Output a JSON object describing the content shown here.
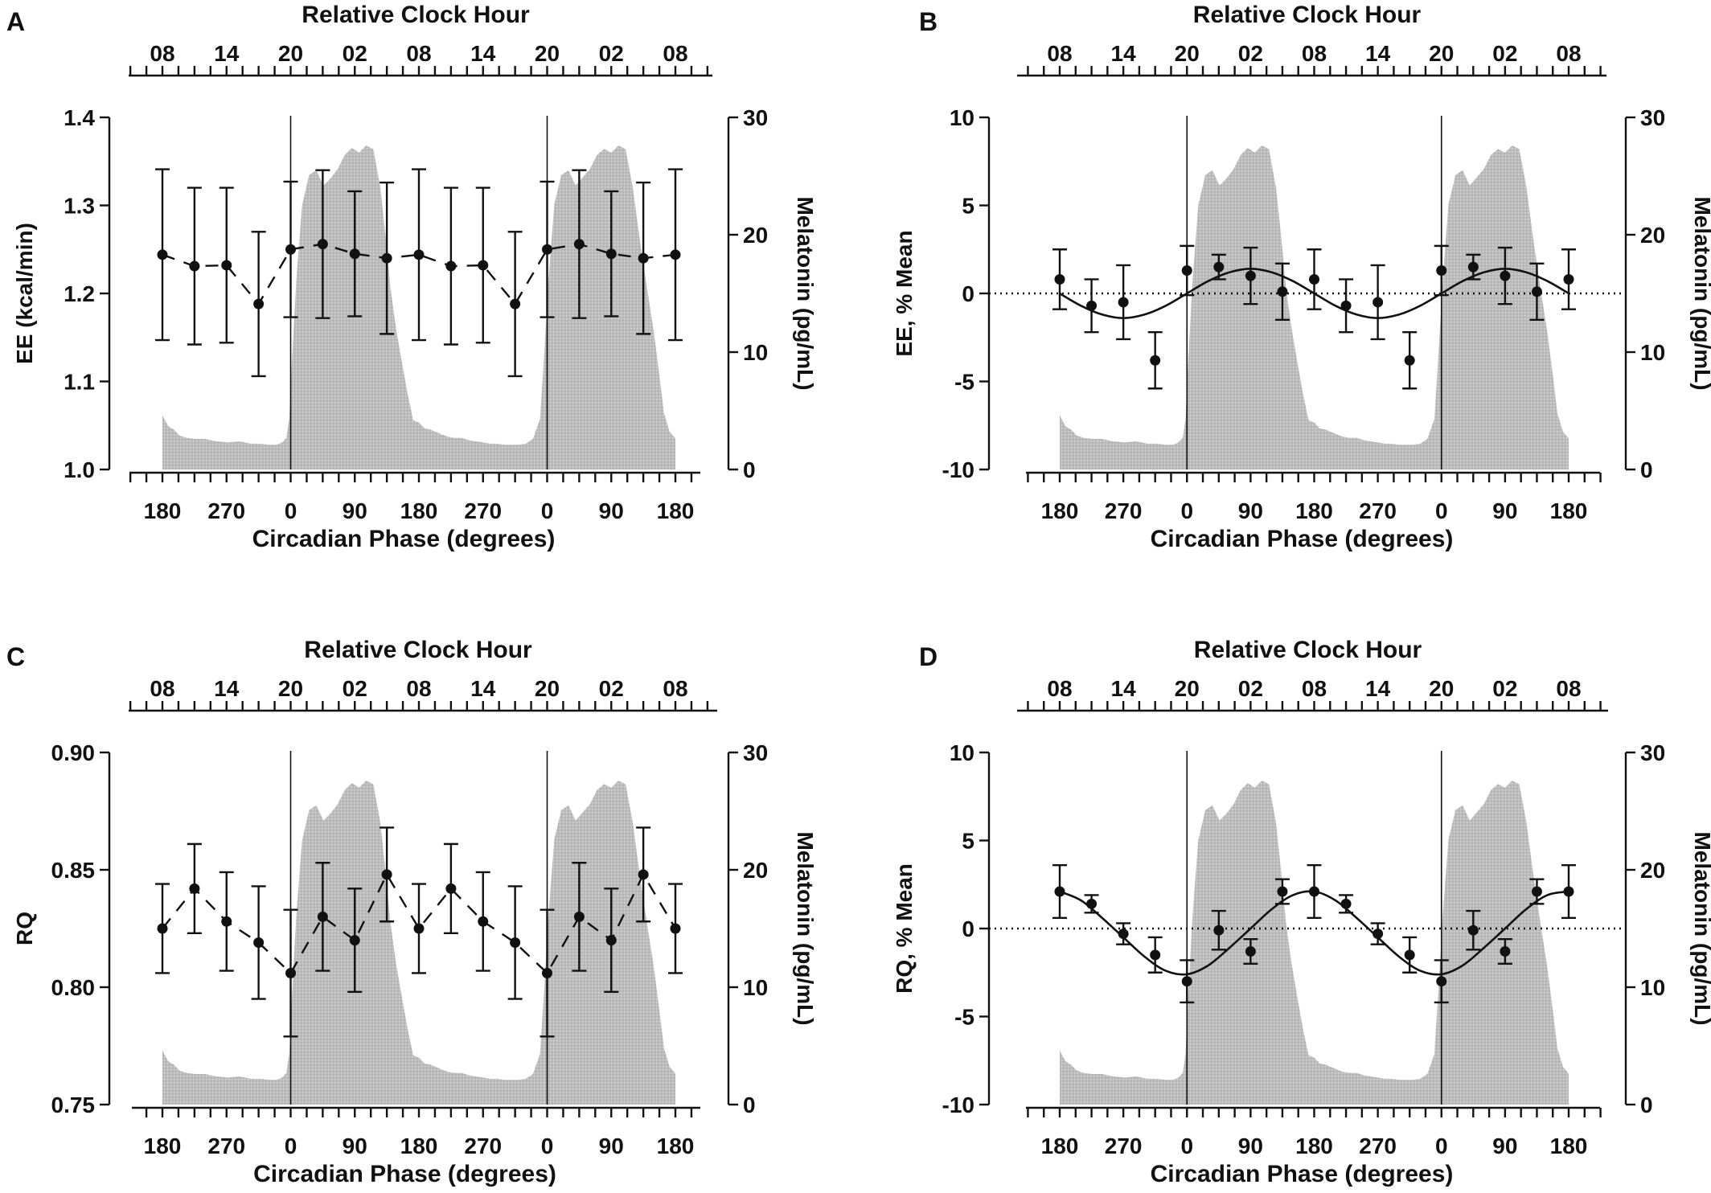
{
  "figure": {
    "panels": [
      "A",
      "B",
      "C",
      "D"
    ]
  },
  "chart_data": [
    {
      "panel": "A",
      "type": "line",
      "top_axis_label": "Relative Clock Hour",
      "top_ticks": [
        "08",
        "14",
        "20",
        "02",
        "08",
        "14",
        "20",
        "02",
        "08"
      ],
      "xlabel": "Circadian Phase (degrees)",
      "x_ticks": [
        "180",
        "270",
        "0",
        "90",
        "180",
        "270",
        "0",
        "90",
        "180"
      ],
      "ylabel": "EE (kcal/min)",
      "ylim": [
        1.0,
        1.4
      ],
      "y_ticks": [
        "1.0",
        "1.1",
        "1.2",
        "1.3",
        "1.4"
      ],
      "y2label": "Melatonin (pg/mL)",
      "y2lim": [
        0,
        30
      ],
      "y2_ticks": [
        "0",
        "10",
        "20",
        "30"
      ],
      "x": [
        180,
        225,
        270,
        315,
        360,
        405,
        450,
        495,
        540,
        585,
        630,
        675,
        720,
        765,
        810,
        855,
        900
      ],
      "series": [
        {
          "values": [
            1.244,
            1.231,
            1.232,
            1.188,
            1.25,
            1.256,
            1.245,
            1.24,
            1.244,
            1.231,
            1.232,
            1.188,
            1.25,
            1.256,
            1.245,
            1.24,
            1.244
          ],
          "error": [
            0.097,
            0.089,
            0.088,
            0.082,
            0.077,
            0.084,
            0.071,
            0.086,
            0.097,
            0.089,
            0.088,
            0.082,
            0.077,
            0.084,
            0.071,
            0.086,
            0.097
          ],
          "style": "dashed"
        }
      ],
      "melatonin": {
        "x": [
          180,
          188,
          196,
          204,
          214,
          226,
          240,
          256,
          272,
          288,
          304,
          318,
          330,
          340,
          348,
          354,
          358,
          362,
          368,
          376,
          386,
          396,
          406,
          416,
          426,
          436,
          446,
          456,
          466,
          476,
          486,
          494,
          500,
          508,
          516,
          524,
          532,
          540,
          548,
          556,
          564,
          572,
          580,
          590,
          600,
          610,
          620,
          630,
          640,
          650,
          660,
          670,
          680,
          690,
          700,
          710,
          716,
          722,
          730,
          740,
          750,
          760,
          770,
          780,
          790,
          800,
          810,
          820,
          830,
          840,
          850,
          860,
          870,
          878,
          884,
          892,
          898,
          900
        ],
        "values": [
          4.6,
          3.7,
          3.4,
          2.9,
          2.7,
          2.6,
          2.6,
          2.4,
          2.3,
          2.4,
          2.2,
          2.2,
          2.1,
          2.1,
          2.3,
          2.7,
          4.3,
          9.5,
          16.2,
          22.5,
          25.1,
          25.5,
          24.2,
          24.8,
          25.6,
          26.8,
          27.4,
          27.0,
          27.6,
          27.3,
          24.0,
          19.4,
          15.5,
          12.0,
          9.2,
          6.5,
          4.2,
          4.0,
          3.5,
          3.4,
          3.2,
          3.0,
          2.8,
          2.7,
          2.7,
          2.5,
          2.4,
          2.3,
          2.2,
          2.2,
          2.1,
          2.1,
          2.1,
          2.2,
          2.6,
          4.3,
          10.0,
          16.3,
          22.6,
          25.1,
          25.5,
          24.2,
          24.9,
          25.6,
          26.8,
          27.3,
          27.0,
          27.6,
          27.3,
          24.1,
          19.6,
          15.5,
          11.6,
          7.8,
          4.8,
          3.2,
          2.8,
          2.6
        ]
      }
    },
    {
      "panel": "B",
      "type": "scatter",
      "top_axis_label": "Relative Clock Hour",
      "top_ticks": [
        "08",
        "14",
        "20",
        "02",
        "08",
        "14",
        "20",
        "02",
        "08"
      ],
      "xlabel": "Circadian Phase (degrees)",
      "x_ticks": [
        "180",
        "270",
        "0",
        "90",
        "180",
        "270",
        "0",
        "90",
        "180"
      ],
      "ylabel": "EE, % Mean",
      "ylim": [
        -10,
        10
      ],
      "y_ticks": [
        "-10",
        "-5",
        "0",
        "5",
        "10"
      ],
      "y2label": "Melatonin (pg/mL)",
      "y2lim": [
        0,
        30
      ],
      "y2_ticks": [
        "0",
        "10",
        "20",
        "30"
      ],
      "x": [
        180,
        225,
        270,
        315,
        360,
        405,
        450,
        495,
        540,
        585,
        630,
        675,
        720,
        765,
        810,
        855,
        900
      ],
      "series": [
        {
          "values": [
            0.8,
            -0.7,
            -0.5,
            -3.8,
            1.3,
            1.5,
            1.0,
            0.1,
            0.8,
            -0.7,
            -0.5,
            -3.8,
            1.3,
            1.5,
            1.0,
            0.1,
            0.8
          ],
          "error": [
            1.7,
            1.5,
            2.1,
            1.6,
            1.4,
            0.7,
            1.6,
            1.6,
            1.7,
            1.5,
            2.1,
            1.6,
            1.4,
            0.7,
            1.6,
            1.6,
            1.7
          ],
          "style": "points"
        }
      ],
      "fit": {
        "x": [
          180,
          210,
          240,
          270,
          300,
          330,
          360,
          390,
          420,
          450,
          480,
          510,
          540,
          570,
          600,
          630,
          660,
          690,
          720,
          750,
          780,
          810,
          840,
          870,
          900
        ],
        "values": [
          0.0,
          -0.7,
          -1.2,
          -1.4,
          -1.2,
          -0.7,
          0.0,
          0.7,
          1.2,
          1.4,
          1.2,
          0.7,
          0.0,
          -0.7,
          -1.2,
          -1.4,
          -1.2,
          -0.7,
          0.0,
          0.7,
          1.2,
          1.4,
          1.2,
          0.7,
          0.0
        ]
      },
      "melatonin": {
        "x": [
          180,
          188,
          196,
          204,
          214,
          226,
          240,
          256,
          272,
          288,
          304,
          318,
          330,
          340,
          348,
          354,
          358,
          362,
          368,
          376,
          386,
          396,
          406,
          416,
          426,
          436,
          446,
          456,
          466,
          476,
          486,
          494,
          500,
          508,
          516,
          524,
          532,
          540,
          548,
          556,
          564,
          572,
          580,
          590,
          600,
          610,
          620,
          630,
          640,
          650,
          660,
          670,
          680,
          690,
          700,
          710,
          716,
          722,
          730,
          740,
          750,
          760,
          770,
          780,
          790,
          800,
          810,
          820,
          830,
          840,
          850,
          860,
          870,
          878,
          884,
          892,
          898,
          900
        ],
        "values": [
          4.6,
          3.7,
          3.4,
          2.9,
          2.7,
          2.6,
          2.6,
          2.4,
          2.3,
          2.4,
          2.2,
          2.2,
          2.1,
          2.1,
          2.3,
          2.7,
          4.3,
          9.5,
          16.2,
          22.5,
          25.1,
          25.5,
          24.2,
          24.8,
          25.6,
          26.8,
          27.4,
          27.0,
          27.6,
          27.3,
          24.0,
          19.4,
          15.5,
          12.0,
          9.2,
          6.5,
          4.2,
          4.0,
          3.5,
          3.4,
          3.2,
          3.0,
          2.8,
          2.7,
          2.7,
          2.5,
          2.4,
          2.3,
          2.2,
          2.2,
          2.1,
          2.1,
          2.1,
          2.2,
          2.6,
          4.3,
          10.0,
          16.3,
          22.6,
          25.1,
          25.5,
          24.2,
          24.9,
          25.6,
          26.8,
          27.3,
          27.0,
          27.6,
          27.3,
          24.1,
          19.6,
          15.5,
          11.6,
          7.8,
          4.8,
          3.2,
          2.8,
          2.6
        ]
      }
    },
    {
      "panel": "C",
      "type": "line",
      "top_axis_label": "Relative Clock Hour",
      "top_ticks": [
        "08",
        "14",
        "20",
        "02",
        "08",
        "14",
        "20",
        "02",
        "08"
      ],
      "xlabel": "Circadian Phase (degrees)",
      "x_ticks": [
        "180",
        "270",
        "0",
        "90",
        "180",
        "270",
        "0",
        "90",
        "180"
      ],
      "ylabel": "RQ",
      "ylim": [
        0.75,
        0.9
      ],
      "y_ticks": [
        "0.75",
        "0.80",
        "0.85",
        "0.90"
      ],
      "y2label": "Melatonin (pg/mL)",
      "y2lim": [
        0,
        30
      ],
      "y2_ticks": [
        "0",
        "10",
        "20",
        "30"
      ],
      "x": [
        180,
        225,
        270,
        315,
        360,
        405,
        450,
        495,
        540,
        585,
        630,
        675,
        720,
        765,
        810,
        855,
        900
      ],
      "series": [
        {
          "values": [
            0.825,
            0.842,
            0.828,
            0.819,
            0.806,
            0.83,
            0.82,
            0.848,
            0.825,
            0.842,
            0.828,
            0.819,
            0.806,
            0.83,
            0.82,
            0.848,
            0.825
          ],
          "error": [
            0.019,
            0.019,
            0.021,
            0.024,
            0.027,
            0.023,
            0.022,
            0.02,
            0.019,
            0.019,
            0.021,
            0.024,
            0.027,
            0.023,
            0.022,
            0.02,
            0.019
          ],
          "style": "dashed"
        }
      ],
      "melatonin": {
        "x": [
          180,
          188,
          196,
          204,
          214,
          226,
          240,
          256,
          272,
          288,
          304,
          318,
          330,
          340,
          348,
          354,
          358,
          362,
          368,
          376,
          386,
          396,
          406,
          416,
          426,
          436,
          446,
          456,
          466,
          476,
          486,
          494,
          500,
          508,
          516,
          524,
          532,
          540,
          548,
          556,
          564,
          572,
          580,
          590,
          600,
          610,
          620,
          630,
          640,
          650,
          660,
          670,
          680,
          690,
          700,
          710,
          716,
          722,
          730,
          740,
          750,
          760,
          770,
          780,
          790,
          800,
          810,
          820,
          830,
          840,
          850,
          860,
          870,
          878,
          884,
          892,
          898,
          900
        ],
        "values": [
          4.6,
          3.7,
          3.4,
          2.9,
          2.7,
          2.6,
          2.6,
          2.4,
          2.3,
          2.4,
          2.2,
          2.2,
          2.1,
          2.1,
          2.3,
          2.7,
          4.3,
          9.5,
          16.2,
          22.5,
          25.1,
          25.5,
          24.2,
          24.8,
          25.6,
          26.8,
          27.4,
          27.0,
          27.6,
          27.3,
          24.0,
          19.4,
          15.5,
          12.0,
          9.2,
          6.5,
          4.2,
          4.0,
          3.5,
          3.4,
          3.2,
          3.0,
          2.8,
          2.7,
          2.7,
          2.5,
          2.4,
          2.3,
          2.2,
          2.2,
          2.1,
          2.1,
          2.1,
          2.2,
          2.6,
          4.3,
          10.0,
          16.3,
          22.6,
          25.1,
          25.5,
          24.2,
          24.9,
          25.6,
          26.8,
          27.3,
          27.0,
          27.6,
          27.3,
          24.1,
          19.6,
          15.5,
          11.6,
          7.8,
          4.8,
          3.2,
          2.8,
          2.6
        ]
      }
    },
    {
      "panel": "D",
      "type": "scatter",
      "top_axis_label": "Relative Clock Hour",
      "top_ticks": [
        "08",
        "14",
        "20",
        "02",
        "08",
        "14",
        "20",
        "02",
        "08"
      ],
      "xlabel": "Circadian Phase (degrees)",
      "x_ticks": [
        "180",
        "270",
        "0",
        "90",
        "180",
        "270",
        "0",
        "90",
        "180"
      ],
      "ylabel": "RQ, % Mean",
      "ylim": [
        -10,
        10
      ],
      "y_ticks": [
        "-10",
        "-5",
        "0",
        "5",
        "10"
      ],
      "y2label": "Melatonin (pg/mL)",
      "y2lim": [
        0,
        30
      ],
      "y2_ticks": [
        "0",
        "10",
        "20",
        "30"
      ],
      "x": [
        180,
        225,
        270,
        315,
        360,
        405,
        450,
        495,
        540,
        585,
        630,
        675,
        720,
        765,
        810,
        855,
        900
      ],
      "series": [
        {
          "values": [
            2.1,
            1.4,
            -0.3,
            -1.5,
            -3.0,
            -0.1,
            -1.3,
            2.1,
            2.1,
            1.4,
            -0.3,
            -1.5,
            -3.0,
            -0.1,
            -1.3,
            2.1,
            2.1
          ],
          "error": [
            1.5,
            0.5,
            0.6,
            1.0,
            1.2,
            1.1,
            0.7,
            0.7,
            1.5,
            0.5,
            0.6,
            1.0,
            1.2,
            1.1,
            0.7,
            0.7,
            1.5
          ],
          "style": "points"
        }
      ],
      "fit": {
        "x": [
          180,
          210,
          240,
          270,
          300,
          330,
          360,
          390,
          420,
          450,
          480,
          510,
          540,
          570,
          600,
          630,
          660,
          690,
          720,
          750,
          780,
          810,
          840,
          870,
          900
        ],
        "values": [
          2.1,
          1.6,
          0.6,
          -0.5,
          -1.6,
          -2.4,
          -2.6,
          -2.1,
          -1.1,
          0.0,
          1.1,
          1.9,
          2.1,
          1.6,
          0.6,
          -0.5,
          -1.6,
          -2.4,
          -2.6,
          -2.1,
          -1.1,
          0.0,
          1.1,
          1.9,
          2.1
        ]
      },
      "melatonin": {
        "x": [
          180,
          188,
          196,
          204,
          214,
          226,
          240,
          256,
          272,
          288,
          304,
          318,
          330,
          340,
          348,
          354,
          358,
          362,
          368,
          376,
          386,
          396,
          406,
          416,
          426,
          436,
          446,
          456,
          466,
          476,
          486,
          494,
          500,
          508,
          516,
          524,
          532,
          540,
          548,
          556,
          564,
          572,
          580,
          590,
          600,
          610,
          620,
          630,
          640,
          650,
          660,
          670,
          680,
          690,
          700,
          710,
          716,
          722,
          730,
          740,
          750,
          760,
          770,
          780,
          790,
          800,
          810,
          820,
          830,
          840,
          850,
          860,
          870,
          878,
          884,
          892,
          898,
          900
        ],
        "values": [
          4.6,
          3.7,
          3.4,
          2.9,
          2.7,
          2.6,
          2.6,
          2.4,
          2.3,
          2.4,
          2.2,
          2.2,
          2.1,
          2.1,
          2.3,
          2.7,
          4.3,
          9.5,
          16.2,
          22.5,
          25.1,
          25.5,
          24.2,
          24.8,
          25.6,
          26.8,
          27.4,
          27.0,
          27.6,
          27.3,
          24.0,
          19.4,
          15.5,
          12.0,
          9.2,
          6.5,
          4.2,
          4.0,
          3.5,
          3.4,
          3.2,
          3.0,
          2.8,
          2.7,
          2.7,
          2.5,
          2.4,
          2.3,
          2.2,
          2.2,
          2.1,
          2.1,
          2.1,
          2.2,
          2.6,
          4.3,
          10.0,
          16.3,
          22.6,
          25.1,
          25.5,
          24.2,
          24.9,
          25.6,
          26.8,
          27.3,
          27.0,
          27.6,
          27.3,
          24.1,
          19.6,
          15.5,
          11.6,
          7.8,
          4.8,
          3.2,
          2.8,
          2.6
        ]
      }
    }
  ]
}
